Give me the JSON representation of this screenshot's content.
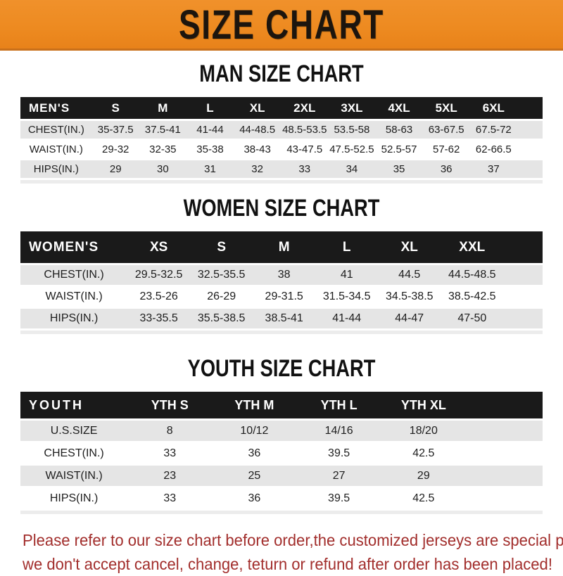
{
  "page": {
    "title": "SIZE CHART",
    "footer": {
      "line1": "Please refer to our size chart before order,the customized jerseys are special products,",
      "line2": "we don't accept cancel, change, teturn or refund after order has been placed!"
    }
  },
  "colors": {
    "banner_orange": "#ED8A20",
    "banner_border": "#C9701A",
    "header_black": "#1A1A1A",
    "row_gray": "#E5E5E5",
    "row_white": "#FFFFFF",
    "footer_red": "#A22E2C"
  },
  "sections": [
    {
      "title": "MAN SIZE CHART",
      "corner_label": "MEN'S",
      "columns": [
        "S",
        "M",
        "L",
        "XL",
        "2XL",
        "3XL",
        "4XL",
        "5XL",
        "6XL"
      ],
      "rows": [
        {
          "label": "CHEST(IN.)",
          "values": [
            "35-37.5",
            "37.5-41",
            "41-44",
            "44-48.5",
            "48.5-53.5",
            "53.5-58",
            "58-63",
            "63-67.5",
            "67.5-72"
          ]
        },
        {
          "label": "WAIST(IN.)",
          "values": [
            "29-32",
            "32-35",
            "35-38",
            "38-43",
            "43-47.5",
            "47.5-52.5",
            "52.5-57",
            "57-62",
            "62-66.5"
          ]
        },
        {
          "label": "HIPS(IN.)",
          "values": [
            "29",
            "30",
            "31",
            "32",
            "33",
            "34",
            "35",
            "36",
            "37"
          ]
        }
      ]
    },
    {
      "title": "WOMEN SIZE CHART",
      "corner_label": "WOMEN'S",
      "columns": [
        "XS",
        "S",
        "M",
        "L",
        "XL",
        "XXL"
      ],
      "rows": [
        {
          "label": "CHEST(IN.)",
          "values": [
            "29.5-32.5",
            "32.5-35.5",
            "38",
            "41",
            "44.5",
            "44.5-48.5"
          ]
        },
        {
          "label": "WAIST(IN.)",
          "values": [
            "23.5-26",
            "26-29",
            "29-31.5",
            "31.5-34.5",
            "34.5-38.5",
            "38.5-42.5"
          ]
        },
        {
          "label": "HIPS(IN.)",
          "values": [
            "33-35.5",
            "35.5-38.5",
            "38.5-41",
            "41-44",
            "44-47",
            "47-50"
          ]
        }
      ]
    },
    {
      "title": "YOUTH SIZE CHART",
      "corner_label": "YOUTH",
      "columns": [
        "YTH S",
        "YTH M",
        "YTH L",
        "YTH XL"
      ],
      "rows": [
        {
          "label": "U.S.SIZE",
          "values": [
            "8",
            "10/12",
            "14/16",
            "18/20"
          ]
        },
        {
          "label": "CHEST(IN.)",
          "values": [
            "33",
            "36",
            "39.5",
            "42.5"
          ]
        },
        {
          "label": "WAIST(IN.)",
          "values": [
            "23",
            "25",
            "27",
            "29"
          ]
        },
        {
          "label": "HIPS(IN.)",
          "values": [
            "33",
            "36",
            "39.5",
            "42.5"
          ]
        }
      ]
    }
  ]
}
